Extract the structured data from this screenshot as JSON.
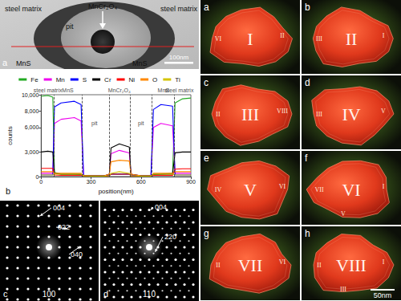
{
  "chart_data": {
    "type": "line",
    "panel_label": "b",
    "x_label": "position(nm)",
    "y_label": "counts",
    "xlim": [
      0,
      900
    ],
    "xticks": [
      0,
      300,
      600,
      900
    ],
    "ylim": [
      0,
      10000
    ],
    "yticks": [
      0,
      3000,
      6000,
      8000,
      10000
    ],
    "grid": false,
    "legend": "top",
    "x": [
      0,
      40,
      70,
      80,
      120,
      200,
      240,
      255,
      300,
      380,
      410,
      420,
      470,
      530,
      540,
      600,
      660,
      675,
      720,
      790,
      805,
      850,
      900
    ],
    "series": [
      {
        "name": "Fe",
        "color": "#22aa22",
        "values": [
          9800,
          9900,
          9700,
          500,
          300,
          300,
          250,
          100,
          100,
          100,
          150,
          300,
          350,
          300,
          150,
          100,
          100,
          250,
          300,
          400,
          9000,
          9500,
          9600
        ]
      },
      {
        "name": "Mn",
        "color": "#ee00ee",
        "values": [
          400,
          400,
          400,
          6500,
          7000,
          7200,
          6800,
          150,
          100,
          100,
          300,
          2800,
          3200,
          2900,
          300,
          100,
          100,
          6000,
          6500,
          6200,
          400,
          400,
          400
        ]
      },
      {
        "name": "S",
        "color": "#0000ff",
        "values": [
          200,
          200,
          200,
          8500,
          9000,
          9200,
          8800,
          150,
          100,
          100,
          150,
          300,
          300,
          300,
          150,
          100,
          100,
          8200,
          8800,
          8600,
          200,
          200,
          200
        ]
      },
      {
        "name": "Cr",
        "color": "#000000",
        "values": [
          3000,
          3100,
          3000,
          400,
          300,
          300,
          300,
          150,
          100,
          100,
          300,
          3500,
          4000,
          3600,
          300,
          100,
          100,
          300,
          300,
          300,
          2900,
          3000,
          3000
        ]
      },
      {
        "name": "Ni",
        "color": "#ff0000",
        "values": [
          1000,
          1000,
          1000,
          200,
          150,
          150,
          150,
          100,
          50,
          50,
          100,
          300,
          300,
          300,
          100,
          50,
          50,
          150,
          150,
          150,
          900,
          950,
          950
        ]
      },
      {
        "name": "O",
        "color": "#ff8800",
        "values": [
          600,
          600,
          600,
          400,
          400,
          400,
          400,
          100,
          100,
          100,
          300,
          1800,
          2000,
          1900,
          300,
          100,
          100,
          400,
          400,
          400,
          600,
          600,
          600
        ]
      },
      {
        "name": "Ti",
        "color": "#d4c400",
        "values": [
          200,
          200,
          200,
          300,
          300,
          300,
          300,
          100,
          50,
          50,
          100,
          400,
          600,
          400,
          100,
          50,
          50,
          300,
          300,
          300,
          200,
          200,
          200
        ]
      }
    ],
    "boundaries": [
      75,
      245,
      410,
      535,
      665,
      800
    ],
    "annotations": [
      {
        "text": "steel matrix",
        "x": 40,
        "y": 10000
      },
      {
        "text": "MnS",
        "x": 160,
        "y": 10000
      },
      {
        "text": "pit",
        "x": 320,
        "y": 6000
      },
      {
        "text": "MnCr₂O₄",
        "x": 470,
        "y": 10000
      },
      {
        "text": "pit",
        "x": 600,
        "y": 6000
      },
      {
        "text": "MnS",
        "x": 735,
        "y": 10000
      },
      {
        "text": "steel matrix",
        "x": 830,
        "y": 10000
      }
    ]
  },
  "micrograph": {
    "panel_label": "a",
    "left_region": "steel matrix",
    "right_region": "steel matrix",
    "pit": "pit",
    "particle": "MnCr₂O₄",
    "left_inclusion": "MnS",
    "right_inclusion": "MnS",
    "scale_bar": "100nm"
  },
  "diffraction": [
    {
      "panel_label": "c",
      "zone_axis": "100",
      "spots": [
        "004",
        "022",
        "040"
      ]
    },
    {
      "panel_label": "d",
      "zone_axis": "110",
      "spots": [
        "004",
        "220"
      ]
    }
  ],
  "renders": {
    "scale_bar": "50nm",
    "panels": [
      {
        "panel_label": "a",
        "main": "I",
        "facets": [
          "VI",
          "II"
        ]
      },
      {
        "panel_label": "b",
        "main": "II",
        "facets": [
          "III",
          "I"
        ]
      },
      {
        "panel_label": "c",
        "main": "III",
        "facets": [
          "II",
          "VIII"
        ]
      },
      {
        "panel_label": "d",
        "main": "IV",
        "facets": [
          "III",
          "V"
        ]
      },
      {
        "panel_label": "e",
        "main": "V",
        "facets": [
          "IV",
          "VI"
        ]
      },
      {
        "panel_label": "f",
        "main": "VI",
        "facets": [
          "VII",
          "I",
          "V"
        ]
      },
      {
        "panel_label": "g",
        "main": "VII",
        "facets": [
          "II",
          "VI"
        ]
      },
      {
        "panel_label": "h",
        "main": "VIII",
        "facets": [
          "II",
          "I",
          "III"
        ]
      }
    ]
  }
}
